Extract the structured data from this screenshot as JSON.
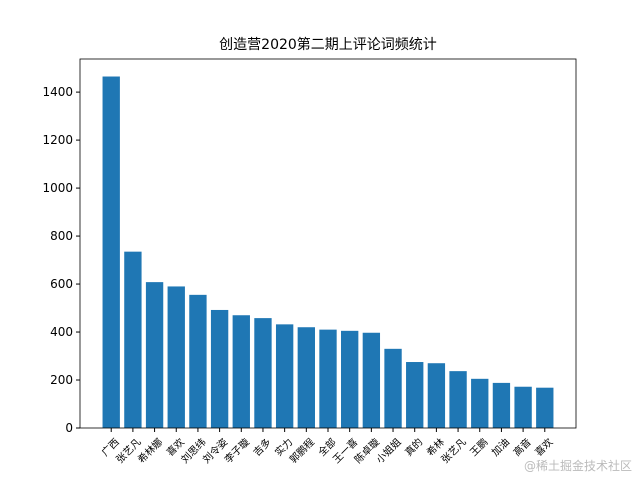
{
  "chart_data": {
    "type": "bar",
    "title": "创造营2020第二期上评论词频统计",
    "categories": [
      "广西",
      "张艺凡",
      "希林娜",
      "喜欢",
      "刘思纬",
      "刘令姿",
      "李子璇",
      "吉多",
      "实力",
      "郭鹏程",
      "全部",
      "王一喜",
      "陈卓璇",
      "小姐姐",
      "真的",
      "希林",
      "张艺凡",
      "王鹏",
      "加油",
      "高音",
      "喜欢"
    ],
    "values": [
      1465,
      735,
      608,
      590,
      555,
      492,
      470,
      458,
      432,
      420,
      410,
      405,
      397,
      330,
      275,
      270,
      237,
      205,
      188,
      172,
      168
    ],
    "color": "#1f77b4",
    "ylim": [
      0,
      1538
    ],
    "yticks": [
      0,
      200,
      400,
      600,
      800,
      1000,
      1200,
      1400
    ],
    "watermark": "@稀土掘金技术社区"
  }
}
